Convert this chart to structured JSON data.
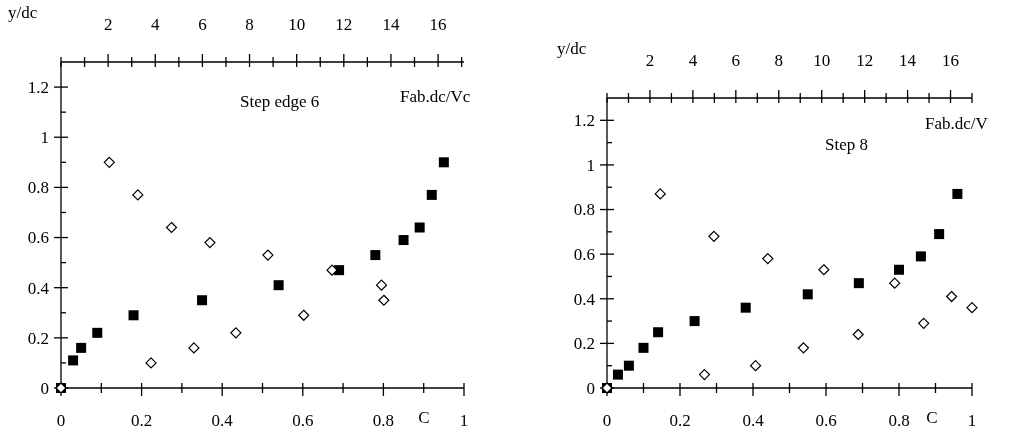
{
  "chart_data": [
    {
      "type": "scatter",
      "xlabel": "C",
      "x2label": "y/dc",
      "ylabel": "Fab.dc/Vc",
      "annotations": [
        "Step edge 6"
      ],
      "xlim": [
        0,
        1
      ],
      "xticks": [
        0,
        {
          "value": 0.1,
          "label": null
        },
        0.2,
        {
          "value": 0.3,
          "label": null
        },
        0.4,
        {
          "value": 0.5,
          "label": null
        },
        0.6,
        {
          "value": 0.7,
          "label": null
        },
        0.8,
        {
          "value": 0.9,
          "label": null
        },
        1
      ],
      "x2lim": [
        0,
        17.1
      ],
      "x2ticks": [
        {
          "value": 0,
          "label": null
        },
        {
          "value": 1,
          "label": null
        },
        2,
        {
          "value": 3,
          "label": null
        },
        4,
        {
          "value": 5,
          "label": null
        },
        6,
        {
          "value": 7,
          "label": null
        },
        8,
        {
          "value": 9,
          "label": null
        },
        10,
        {
          "value": 11,
          "label": null
        },
        12,
        {
          "value": 13,
          "label": null
        },
        14,
        {
          "value": 15,
          "label": null
        },
        16,
        {
          "value": 17,
          "label": null
        }
      ],
      "ylim": [
        0,
        1.3
      ],
      "yticks": [
        0,
        {
          "value": 0.1,
          "label": null
        },
        0.2,
        {
          "value": 0.3,
          "label": null
        },
        0.4,
        {
          "value": 0.5,
          "label": null
        },
        0.6,
        {
          "value": 0.7,
          "label": null
        },
        0.8,
        {
          "value": 0.9,
          "label": null
        },
        1,
        {
          "value": 1.1,
          "label": null
        },
        1.2
      ],
      "series": [
        {
          "color": "#000000",
          "marker": "square",
          "x": [
            0,
            0.03,
            0.05,
            0.09,
            0.18,
            0.35,
            0.54,
            0.69,
            0.78,
            0.85,
            0.89,
            0.92,
            0.95
          ],
          "values": [
            0,
            0.11,
            0.16,
            0.22,
            0.29,
            0.35,
            0.41,
            0.47,
            0.53,
            0.59,
            0.64,
            0.77,
            0.9
          ]
        },
        {
          "color": "#000000",
          "marker": "diamond",
          "axis": "x2",
          "x": [
            0,
            2.05,
            3.26,
            4.69,
            6.32,
            8.78,
            11.5,
            13.6,
            13.7,
            10.3,
            7.42,
            5.64,
            3.82
          ],
          "values": [
            0,
            0.9,
            0.77,
            0.64,
            0.58,
            0.53,
            0.47,
            0.41,
            0.35,
            0.29,
            0.22,
            0.16,
            0.1
          ]
        }
      ]
    },
    {
      "type": "scatter",
      "xlabel": "C",
      "x2label": "y/dc",
      "ylabel": "Fab.dc/V",
      "annotations": [
        "Step 8"
      ],
      "xlim": [
        0,
        1
      ],
      "xticks": [
        0,
        {
          "value": 0.1,
          "label": null
        },
        0.2,
        {
          "value": 0.3,
          "label": null
        },
        0.4,
        {
          "value": 0.5,
          "label": null
        },
        0.6,
        {
          "value": 0.7,
          "label": null
        },
        0.8,
        {
          "value": 0.9,
          "label": null
        },
        1
      ],
      "x2lim": [
        0,
        17
      ],
      "x2ticks": [
        {
          "value": 0,
          "label": null
        },
        {
          "value": 1,
          "label": null
        },
        2,
        {
          "value": 3,
          "label": null
        },
        4,
        {
          "value": 5,
          "label": null
        },
        6,
        {
          "value": 7,
          "label": null
        },
        8,
        {
          "value": 9,
          "label": null
        },
        10,
        {
          "value": 11,
          "label": null
        },
        12,
        {
          "value": 13,
          "label": null
        },
        14,
        {
          "value": 15,
          "label": null
        },
        16,
        {
          "value": 17,
          "label": null
        }
      ],
      "ylim": [
        0,
        1.3
      ],
      "yticks": [
        0,
        {
          "value": 0.1,
          "label": null
        },
        0.2,
        {
          "value": 0.3,
          "label": null
        },
        0.4,
        {
          "value": 0.5,
          "label": null
        },
        0.6,
        {
          "value": 0.7,
          "label": null
        },
        0.8,
        {
          "value": 0.9,
          "label": null
        },
        1,
        {
          "value": 1.1,
          "label": null
        },
        1.2
      ],
      "series": [
        {
          "color": "#000000",
          "marker": "square",
          "x": [
            0,
            0.03,
            0.06,
            0.1,
            0.14,
            0.24,
            0.38,
            0.55,
            0.69,
            0.8,
            0.86,
            0.91,
            0.96
          ],
          "values": [
            0,
            0.06,
            0.1,
            0.18,
            0.25,
            0.3,
            0.36,
            0.42,
            0.47,
            0.53,
            0.59,
            0.69,
            0.87
          ]
        },
        {
          "color": "#000000",
          "marker": "diamond",
          "axis": "x2",
          "x": [
            0,
            2.48,
            4.98,
            7.49,
            10.1,
            13.4,
            16.05,
            17,
            14.75,
            11.7,
            9.15,
            6.92,
            4.54
          ],
          "values": [
            0,
            0.87,
            0.68,
            0.58,
            0.53,
            0.47,
            0.41,
            0.36,
            0.29,
            0.24,
            0.18,
            0.1,
            0.06
          ]
        }
      ]
    }
  ]
}
